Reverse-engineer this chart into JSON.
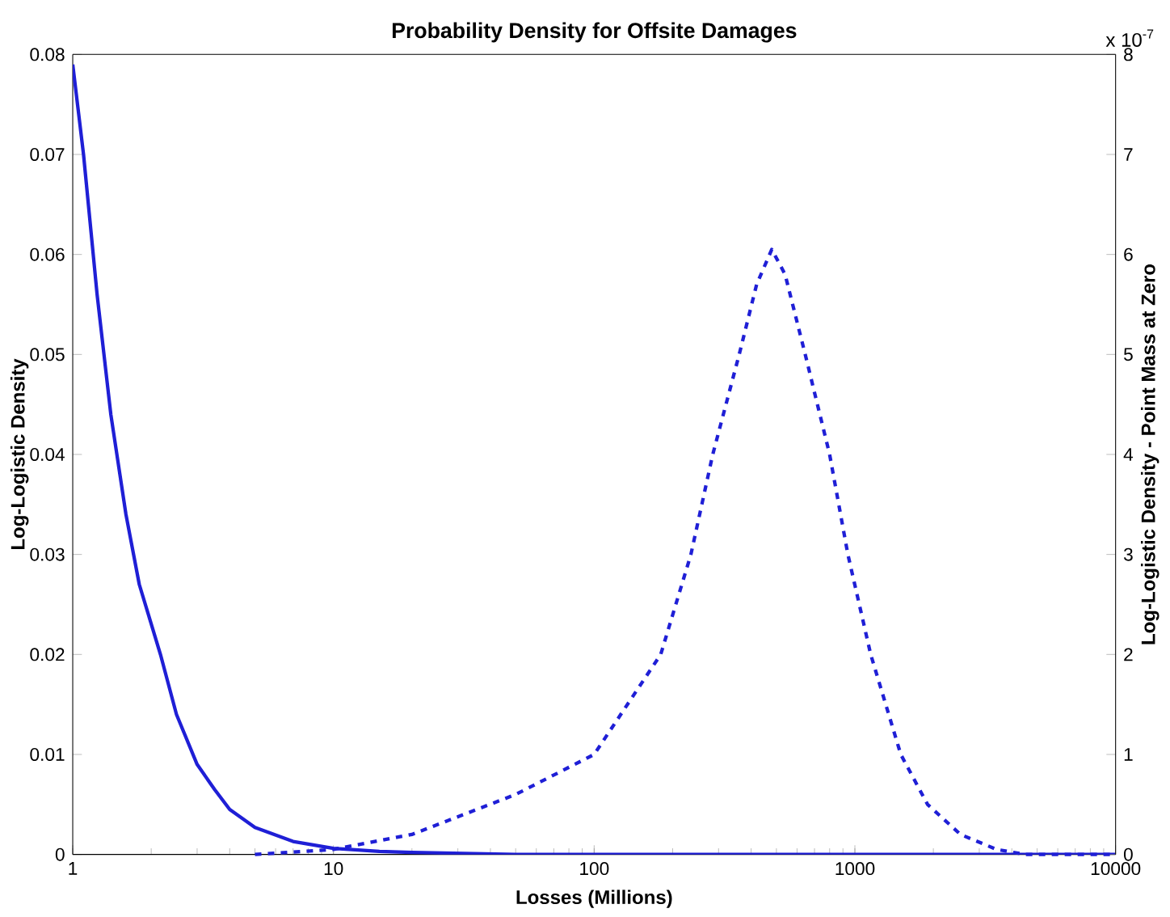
{
  "chart_data": {
    "type": "line",
    "title": "Probability Density for Offsite Damages",
    "xlabel": "Losses (Millions)",
    "ylabel": "Log-Logistic Density",
    "y2label": "Log-Logistic Density - Point Mass at Zero",
    "log": "x",
    "xlim": [
      1,
      10000
    ],
    "xticks": [
      1,
      10,
      100,
      1000,
      10000
    ],
    "ylim": [
      0,
      0.08
    ],
    "yticks": [
      0,
      0.01,
      0.02,
      0.03,
      0.04,
      0.05,
      0.06,
      0.07,
      0.08
    ],
    "y2lim": [
      0,
      8
    ],
    "y2ticks": [
      0,
      1,
      2,
      3,
      4,
      5,
      6,
      7,
      8
    ],
    "annotations": [
      "x 10$^{-7}$"
    ],
    "marker": "none",
    "series": [
      {
        "color": "#1f1fd6",
        "line_style": "solid",
        "x": [
          1,
          1.1,
          1.24,
          1.4,
          1.6,
          1.8,
          2.17,
          2.5,
          3,
          3.5,
          4,
          5,
          7,
          10,
          15,
          20,
          50,
          100,
          1000,
          10000
        ],
        "values": [
          0.079,
          0.07,
          0.056,
          0.044,
          0.034,
          0.027,
          0.02,
          0.014,
          0.009,
          0.0065,
          0.0045,
          0.0027,
          0.0013,
          0.0006,
          0.0003,
          0.0002,
          0,
          0,
          0,
          0
        ]
      },
      {
        "color": "#1f1fd6",
        "line_style": "dashed",
        "axis": "y2",
        "x": [
          5,
          10,
          20,
          50,
          100,
          180,
          235,
          285,
          360,
          420,
          480,
          540,
          645,
          800,
          940,
          1150,
          1500,
          1900,
          2540,
          3500,
          4500,
          10000
        ],
        "values": [
          0,
          0.05,
          0.2,
          0.6,
          1.0,
          2.0,
          3.0,
          4.0,
          5.0,
          5.7,
          6.05,
          5.8,
          5.0,
          4.0,
          3.0,
          2.0,
          1.0,
          0.5,
          0.2,
          0.05,
          0,
          0
        ]
      }
    ]
  }
}
